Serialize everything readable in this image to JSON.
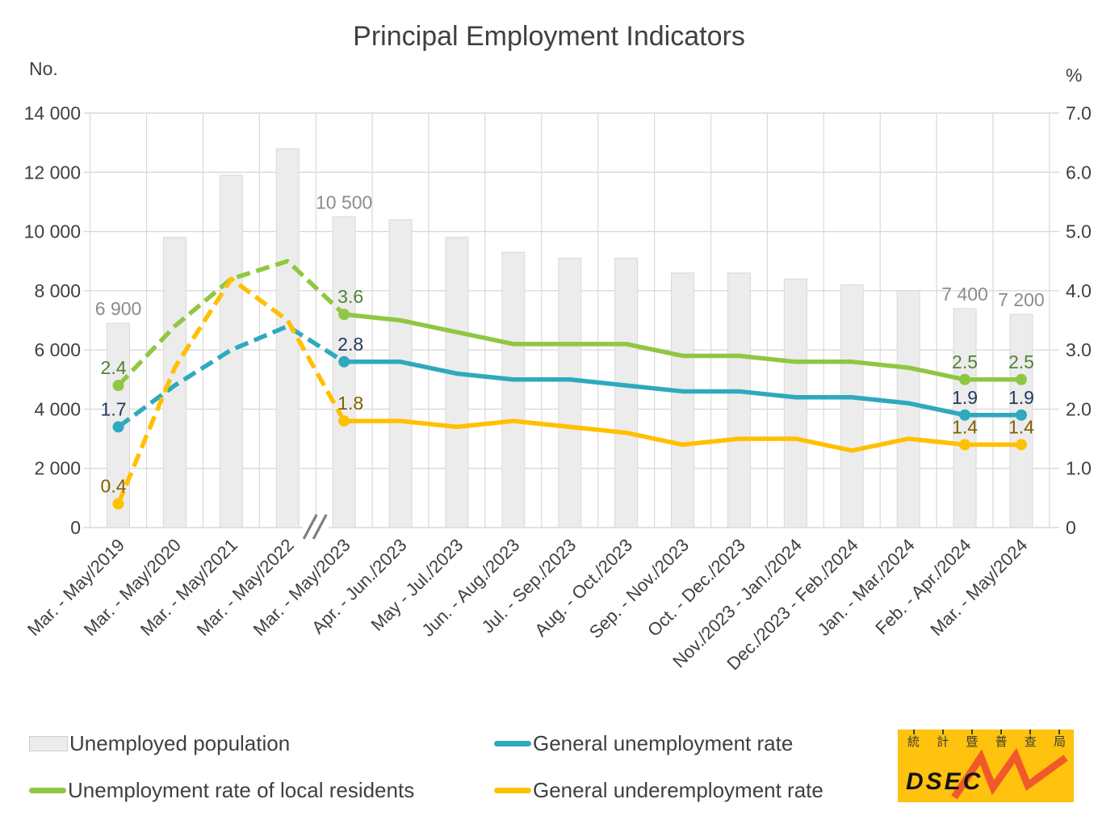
{
  "chart_data": {
    "type": "combo-bar-line",
    "title": "Principal Employment Indicators",
    "left_axis": {
      "unit": "No.",
      "range": [
        0,
        14000
      ],
      "tick_step": 2000,
      "tick_labels": [
        "0",
        "2 000",
        "4 000",
        "6 000",
        "8 000",
        "10 000",
        "12 000",
        "14 000"
      ]
    },
    "right_axis": {
      "unit": "%",
      "range": [
        0,
        7
      ],
      "tick_step": 1,
      "tick_labels": [
        "0",
        "1.0",
        "2.0",
        "3.0",
        "4.0",
        "5.0",
        "6.0",
        "7.0"
      ]
    },
    "categories": [
      "Mar. - May/2019",
      "Mar. - May/2020",
      "Mar. - May/2021",
      "Mar. - May/2022",
      "Mar. - May/2023",
      "Apr. - Jun./2023",
      "May - Jul./2023",
      "Jun. - Aug./2023",
      "Jul. - Sep./2023",
      "Aug. - Oct./2023",
      "Sep. - Nov./2023",
      "Oct. - Dec./2023",
      "Nov./2023 - Jan./2024",
      "Dec./2023 - Feb./2024",
      "Jan. - Mar./2024",
      "Feb. - Apr./2024",
      "Mar. - May/2024"
    ],
    "series": [
      {
        "name": "Unemployed population",
        "type": "bar",
        "axis": "left",
        "color": "#ECECEC",
        "border_color": "#D9D9D9",
        "label_color": "#8C8C8C",
        "values": [
          6900,
          9800,
          11900,
          12800,
          10500,
          10400,
          9800,
          9300,
          9100,
          9100,
          8600,
          8600,
          8400,
          8200,
          8000,
          7400,
          7200
        ],
        "point_labels": {
          "0": "6 900",
          "4": "10 500",
          "15": "7 400",
          "16": "7 200"
        }
      },
      {
        "name": "General unemployment rate",
        "type": "line",
        "axis": "right",
        "color": "#2EA9BE",
        "label_color": "#24395E",
        "values": [
          1.7,
          2.4,
          3.0,
          3.4,
          2.8,
          2.8,
          2.6,
          2.5,
          2.5,
          2.4,
          2.3,
          2.3,
          2.2,
          2.2,
          2.1,
          1.9,
          1.9
        ],
        "point_labels": {
          "0": "1.7",
          "4": "2.8",
          "15": "1.9",
          "16": "1.9"
        }
      },
      {
        "name": "Unemployment rate of local residents",
        "type": "line",
        "axis": "right",
        "color": "#8FC742",
        "label_color": "#538135",
        "values": [
          2.4,
          3.4,
          4.2,
          4.5,
          3.6,
          3.5,
          3.3,
          3.1,
          3.1,
          3.1,
          2.9,
          2.9,
          2.8,
          2.8,
          2.7,
          2.5,
          2.5
        ],
        "point_labels": {
          "0": "2.4",
          "4": "3.6",
          "15": "2.5",
          "16": "2.5"
        }
      },
      {
        "name": "General underemployment rate",
        "type": "line",
        "axis": "right",
        "color": "#FFC000",
        "label_color": "#806000",
        "values": [
          0.4,
          2.7,
          4.2,
          3.5,
          1.8,
          1.8,
          1.7,
          1.8,
          1.7,
          1.6,
          1.4,
          1.5,
          1.5,
          1.3,
          1.5,
          1.4,
          1.4
        ],
        "point_labels": {
          "0": "0.4",
          "4": "1.8",
          "15": "1.4",
          "16": "1.4"
        }
      }
    ],
    "axis_break_after": "Mar. - May/2022",
    "dashed_until_index": 4,
    "marker_indices": [
      0,
      4,
      15,
      16
    ],
    "grid": true,
    "legend_position": "bottom"
  },
  "legend": [
    {
      "label": "Unemployed population",
      "swatch": "bar",
      "color": "#ECECEC"
    },
    {
      "label": "General unemployment rate",
      "swatch": "line",
      "color": "#2EA9BE"
    },
    {
      "label": "Unemployment rate of local residents",
      "swatch": "line",
      "color": "#8FC742"
    },
    {
      "label": "General underemployment rate",
      "swatch": "line",
      "color": "#FFC000"
    }
  ],
  "logo": {
    "chars": [
      "統",
      "計",
      "暨",
      "普",
      "查",
      "局"
    ],
    "latin": "DSEC",
    "bg_color": "#FFC20E",
    "zigzag_color": "#F1592A",
    "text_color": "#3B3B33"
  }
}
